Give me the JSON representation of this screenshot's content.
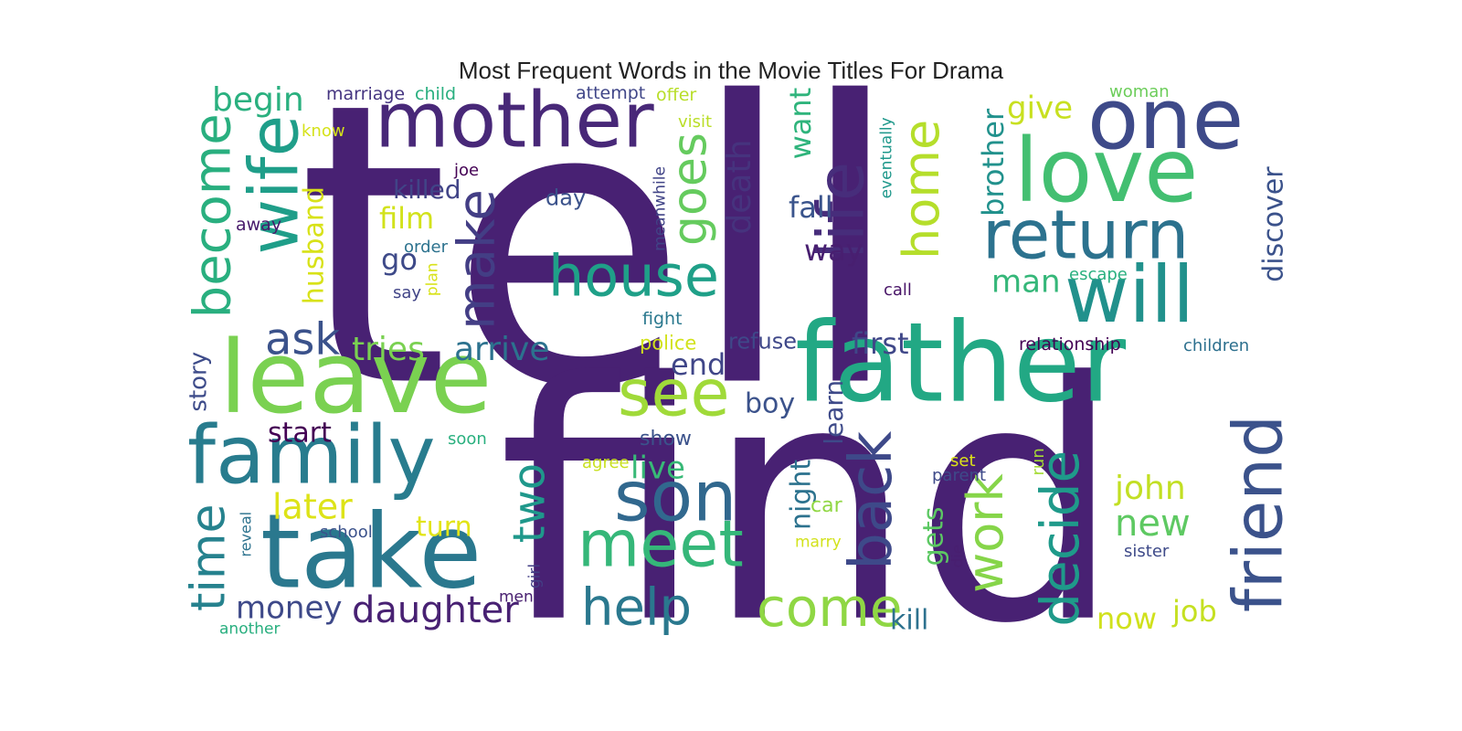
{
  "title": "Most Frequent Words in the Movie Titles For Drama",
  "words": [
    {
      "text": "tell",
      "color": "#482173"
    },
    {
      "text": "find",
      "color": "#482173"
    },
    {
      "text": "father",
      "color": "#22a884"
    },
    {
      "text": "leave",
      "color": "#7ad151"
    },
    {
      "text": "take",
      "color": "#2a788e"
    },
    {
      "text": "mother",
      "color": "#482878"
    },
    {
      "text": "love",
      "color": "#43bf71"
    },
    {
      "text": "one",
      "color": "#3e4a89"
    },
    {
      "text": "family",
      "color": "#287c8e"
    },
    {
      "text": "friend",
      "color": "#3b528b"
    },
    {
      "text": "will",
      "color": "#21918c"
    },
    {
      "text": "return",
      "color": "#2c728e"
    },
    {
      "text": "wife",
      "color": "#1f9e89"
    },
    {
      "text": "son",
      "color": "#31688e"
    },
    {
      "text": "meet",
      "color": "#35b779"
    },
    {
      "text": "house",
      "color": "#1fa088"
    },
    {
      "text": "life",
      "color": "#472d7b"
    },
    {
      "text": "see",
      "color": "#a0da39"
    },
    {
      "text": "back",
      "color": "#3e4989"
    },
    {
      "text": "come",
      "color": "#8fd744"
    },
    {
      "text": "decide",
      "color": "#1f9a8a"
    },
    {
      "text": "become",
      "color": "#29af7f"
    },
    {
      "text": "make",
      "color": "#433e85"
    },
    {
      "text": "work",
      "color": "#86d549"
    },
    {
      "text": "home",
      "color": "#b5de2b"
    },
    {
      "text": "goes",
      "color": "#65cb5e"
    },
    {
      "text": "time",
      "color": "#26828e"
    },
    {
      "text": "help",
      "color": "#2a788e"
    },
    {
      "text": "two",
      "color": "#1f988b"
    },
    {
      "text": "daughter",
      "color": "#482173"
    },
    {
      "text": "ask",
      "color": "#3b528b"
    },
    {
      "text": "arrive",
      "color": "#2c728e"
    },
    {
      "text": "tries",
      "color": "#7ad151"
    },
    {
      "text": "death",
      "color": "#46337e"
    },
    {
      "text": "money",
      "color": "#3e4989"
    },
    {
      "text": "new",
      "color": "#5ec962"
    },
    {
      "text": "john",
      "color": "#c2df23"
    },
    {
      "text": "later",
      "color": "#dde318"
    },
    {
      "text": "begin",
      "color": "#2ab07f"
    },
    {
      "text": "husband",
      "color": "#d8e219"
    },
    {
      "text": "first",
      "color": "#3f4788"
    },
    {
      "text": "give",
      "color": "#c8e020"
    },
    {
      "text": "brother",
      "color": "#21918c"
    },
    {
      "text": "discover",
      "color": "#3b528b"
    },
    {
      "text": "killed",
      "color": "#414487"
    },
    {
      "text": "film",
      "color": "#d2e21b"
    },
    {
      "text": "fall",
      "color": "#3a548c"
    },
    {
      "text": "want",
      "color": "#2fb47c"
    },
    {
      "text": "way",
      "color": "#481f70"
    },
    {
      "text": "man",
      "color": "#35b779"
    },
    {
      "text": "end",
      "color": "#404688"
    },
    {
      "text": "boy",
      "color": "#3b528b"
    },
    {
      "text": "start",
      "color": "#440154"
    },
    {
      "text": "live",
      "color": "#38b977"
    },
    {
      "text": "turn",
      "color": "#e2e418"
    },
    {
      "text": "now",
      "color": "#d0e11c"
    },
    {
      "text": "job",
      "color": "#c5e021"
    },
    {
      "text": "kill",
      "color": "#2d718e"
    },
    {
      "text": "night",
      "color": "#2c728e"
    },
    {
      "text": "learn",
      "color": "#3e4a89"
    },
    {
      "text": "gets",
      "color": "#5cc863"
    },
    {
      "text": "story",
      "color": "#3e4c8a"
    },
    {
      "text": "go",
      "color": "#3e4a89"
    },
    {
      "text": "refuse",
      "color": "#3f4889"
    },
    {
      "text": "relationship",
      "color": "#440154"
    },
    {
      "text": "children",
      "color": "#2d708e"
    },
    {
      "text": "marriage",
      "color": "#453581"
    },
    {
      "text": "child",
      "color": "#29af7f"
    },
    {
      "text": "attempt",
      "color": "#404688"
    },
    {
      "text": "offer",
      "color": "#b8de29"
    },
    {
      "text": "woman",
      "color": "#6ccd5a"
    },
    {
      "text": "know",
      "color": "#d5e21a"
    },
    {
      "text": "visit",
      "color": "#bade28"
    },
    {
      "text": "joe",
      "color": "#440154"
    },
    {
      "text": "day",
      "color": "#3b528b"
    },
    {
      "text": "meanwhile",
      "color": "#414487"
    },
    {
      "text": "eventually",
      "color": "#1f988b"
    },
    {
      "text": "away",
      "color": "#481a6c"
    },
    {
      "text": "order",
      "color": "#2c728e"
    },
    {
      "text": "plan",
      "color": "#d8e219"
    },
    {
      "text": "say",
      "color": "#414487"
    },
    {
      "text": "call",
      "color": "#481467"
    },
    {
      "text": "escape",
      "color": "#2ab07f"
    },
    {
      "text": "fight",
      "color": "#2a788e"
    },
    {
      "text": "police",
      "color": "#d2e21b"
    },
    {
      "text": "show",
      "color": "#3b528b"
    },
    {
      "text": "soon",
      "color": "#2ab07f"
    },
    {
      "text": "agree",
      "color": "#c8e020"
    },
    {
      "text": "set",
      "color": "#dde318"
    },
    {
      "text": "parent",
      "color": "#3e4a89"
    },
    {
      "text": "run",
      "color": "#a5db36"
    },
    {
      "text": "car",
      "color": "#90d743"
    },
    {
      "text": "marry",
      "color": "#d2e21b"
    },
    {
      "text": "die",
      "color": "#481f70"
    },
    {
      "text": "sister",
      "color": "#3e4a89"
    },
    {
      "text": "reveal",
      "color": "#2c728e"
    },
    {
      "text": "school",
      "color": "#3b528b"
    },
    {
      "text": "girl",
      "color": "#433e85"
    },
    {
      "text": "men",
      "color": "#481f70"
    },
    {
      "text": "another",
      "color": "#29af7f"
    }
  ]
}
